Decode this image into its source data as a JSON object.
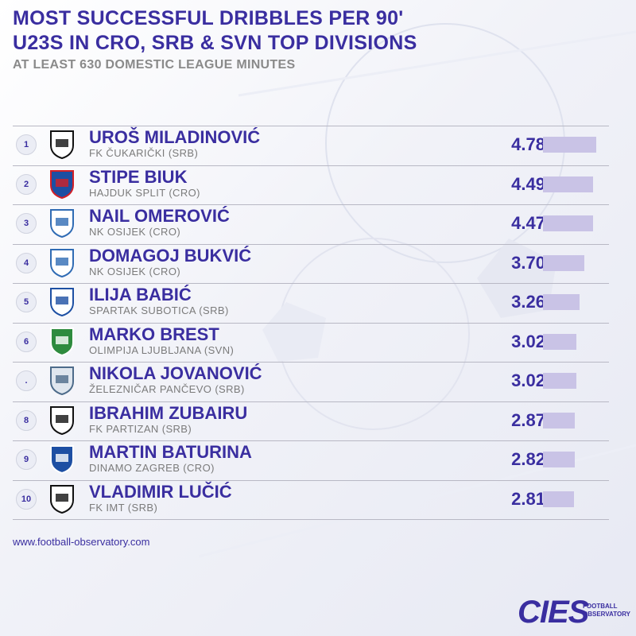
{
  "header": {
    "title_line1": "MOST SUCCESSFUL DRIBBLES PER 90'",
    "title_line2": "U23S IN CRO, SRB & SVN TOP DIVISIONS",
    "subtitle": "AT LEAST 630 DOMESTIC LEAGUE MINUTES"
  },
  "colors": {
    "title": "#3a2ea0",
    "subtitle": "#8a8a8a",
    "bar": "#c9c3e6"
  },
  "chart_data": {
    "type": "bar",
    "orientation": "horizontal",
    "title": "MOST SUCCESSFUL DRIBBLES PER 90' U23S IN CRO, SRB & SVN TOP DIVISIONS",
    "subtitle": "AT LEAST 630 DOMESTIC LEAGUE MINUTES",
    "xlim": [
      0,
      4.78
    ],
    "rows": [
      {
        "rank": "1",
        "player": "UROŠ MILADINOVIĆ",
        "club": "FK ČUKARIČKI (SRB)",
        "value": 4.78,
        "value_label": "4.78",
        "crest": "cukaricki-crest-icon"
      },
      {
        "rank": "2",
        "player": "STIPE BIUK",
        "club": "HAJDUK SPLIT (CRO)",
        "value": 4.49,
        "value_label": "4.49",
        "crest": "hajduk-crest-icon"
      },
      {
        "rank": "3",
        "player": "NAIL OMEROVIĆ",
        "club": "NK OSIJEK (CRO)",
        "value": 4.47,
        "value_label": "4.47",
        "crest": "osijek-crest-icon"
      },
      {
        "rank": "4",
        "player": "DOMAGOJ BUKVIĆ",
        "club": "NK OSIJEK (CRO)",
        "value": 3.7,
        "value_label": "3.70",
        "crest": "osijek-crest-icon"
      },
      {
        "rank": "5",
        "player": "ILIJA BABIĆ",
        "club": "SPARTAK SUBOTICA (SRB)",
        "value": 3.26,
        "value_label": "3.26",
        "crest": "spartak-crest-icon"
      },
      {
        "rank": "6",
        "player": "MARKO BREST",
        "club": "OLIMPIJA LJUBLJANA (SVN)",
        "value": 3.02,
        "value_label": "3.02",
        "crest": "olimpija-crest-icon"
      },
      {
        "rank": ".",
        "player": "NIKOLA JOVANOVIĆ",
        "club": "ŽELEZNIČAR PANČEVO (SRB)",
        "value": 3.02,
        "value_label": "3.02",
        "crest": "zeleznicar-crest-icon"
      },
      {
        "rank": "8",
        "player": "IBRAHIM ZUBAIRU",
        "club": "FK PARTIZAN (SRB)",
        "value": 2.87,
        "value_label": "2.87",
        "crest": "partizan-crest-icon"
      },
      {
        "rank": "9",
        "player": "MARTIN BATURINA",
        "club": "DINAMO ZAGREB (CRO)",
        "value": 2.82,
        "value_label": "2.82",
        "crest": "dinamo-crest-icon"
      },
      {
        "rank": "10",
        "player": "VLADIMIR LUČIĆ",
        "club": "FK IMT (SRB)",
        "value": 2.81,
        "value_label": "2.81",
        "crest": "imt-crest-icon"
      }
    ]
  },
  "footer": {
    "url": "www.football-observatory.com",
    "logo_text": "CIES",
    "logo_sub1": "FOOTBALL",
    "logo_sub2": "OBSERVATORY"
  }
}
